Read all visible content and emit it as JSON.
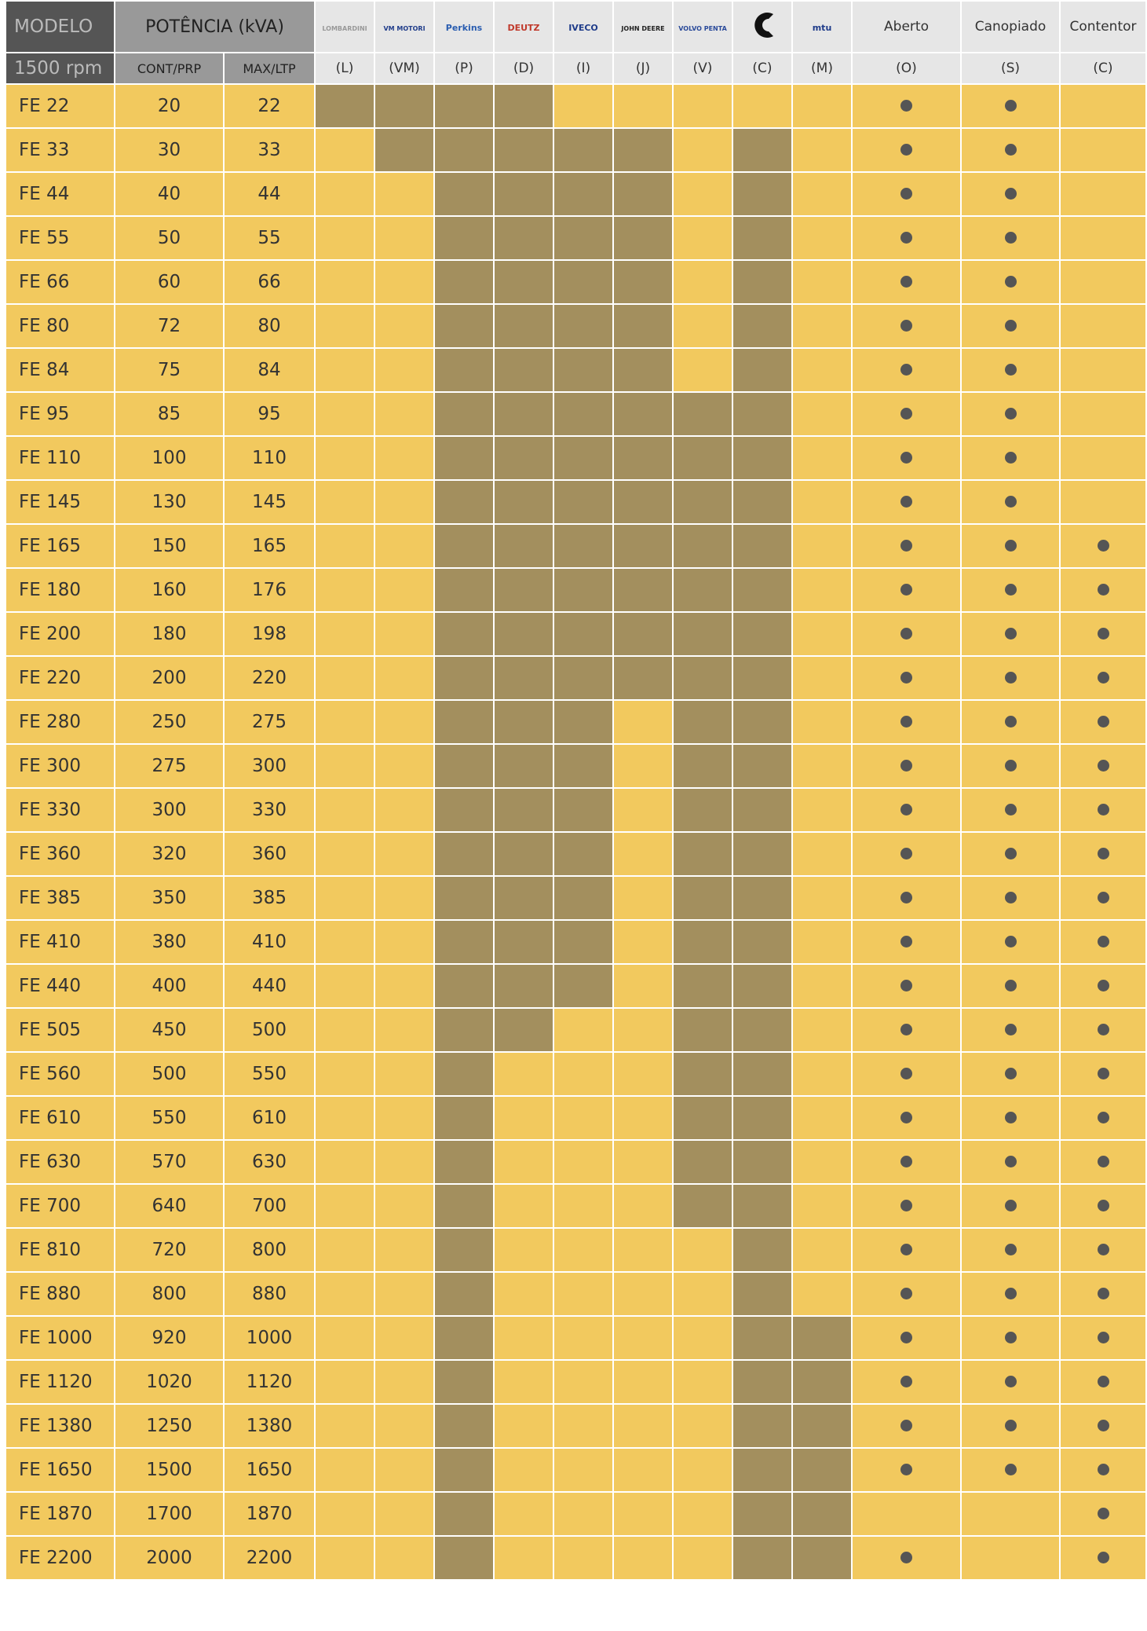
{
  "header": {
    "model": "MODELO",
    "rpm": "1500 rpm",
    "power": "POTÊNCIA (kVA)",
    "cont": "CONT/PRP",
    "max": "MAX/LTP",
    "engines": [
      {
        "logo": "LOMBARDINI",
        "code": "(L)"
      },
      {
        "logo": "VM MOTORI",
        "code": "(VM)"
      },
      {
        "logo": "Perkins",
        "code": "(P)"
      },
      {
        "logo": "DEUTZ",
        "code": "(D)"
      },
      {
        "logo": "IVECO",
        "code": "(I)"
      },
      {
        "logo": "JOHN DEERE",
        "code": "(J)"
      },
      {
        "logo": "VOLVO PENTA",
        "code": "(V)"
      },
      {
        "code": "(C)"
      },
      {
        "logo": "mtu",
        "code": "(M)"
      }
    ],
    "enclosures": [
      {
        "name": "Aberto",
        "code": "(O)"
      },
      {
        "name": "Canopiado",
        "code": "(S)"
      },
      {
        "name": "Contentor",
        "code": "(C)"
      }
    ]
  },
  "rows": [
    {
      "model": "FE 22",
      "cont": 20,
      "max": 22,
      "engines": [
        true,
        true,
        true,
        true,
        false,
        false,
        false,
        false,
        false
      ],
      "enclosures": [
        true,
        true,
        false
      ]
    },
    {
      "model": "FE 33",
      "cont": 30,
      "max": 33,
      "engines": [
        false,
        true,
        true,
        true,
        true,
        true,
        false,
        true,
        false
      ],
      "enclosures": [
        true,
        true,
        false
      ]
    },
    {
      "model": "FE 44",
      "cont": 40,
      "max": 44,
      "engines": [
        false,
        false,
        true,
        true,
        true,
        true,
        false,
        true,
        false
      ],
      "enclosures": [
        true,
        true,
        false
      ]
    },
    {
      "model": "FE 55",
      "cont": 50,
      "max": 55,
      "engines": [
        false,
        false,
        true,
        true,
        true,
        true,
        false,
        true,
        false
      ],
      "enclosures": [
        true,
        true,
        false
      ]
    },
    {
      "model": "FE 66",
      "cont": 60,
      "max": 66,
      "engines": [
        false,
        false,
        true,
        true,
        true,
        true,
        false,
        true,
        false
      ],
      "enclosures": [
        true,
        true,
        false
      ]
    },
    {
      "model": "FE 80",
      "cont": 72,
      "max": 80,
      "engines": [
        false,
        false,
        true,
        true,
        true,
        true,
        false,
        true,
        false
      ],
      "enclosures": [
        true,
        true,
        false
      ]
    },
    {
      "model": "FE 84",
      "cont": 75,
      "max": 84,
      "engines": [
        false,
        false,
        true,
        true,
        true,
        true,
        false,
        true,
        false
      ],
      "enclosures": [
        true,
        true,
        false
      ]
    },
    {
      "model": "FE 95",
      "cont": 85,
      "max": 95,
      "engines": [
        false,
        false,
        true,
        true,
        true,
        true,
        true,
        true,
        false
      ],
      "enclosures": [
        true,
        true,
        false
      ]
    },
    {
      "model": "FE 110",
      "cont": 100,
      "max": 110,
      "engines": [
        false,
        false,
        true,
        true,
        true,
        true,
        true,
        true,
        false
      ],
      "enclosures": [
        true,
        true,
        false
      ]
    },
    {
      "model": "FE 145",
      "cont": 130,
      "max": 145,
      "engines": [
        false,
        false,
        true,
        true,
        true,
        true,
        true,
        true,
        false
      ],
      "enclosures": [
        true,
        true,
        false
      ]
    },
    {
      "model": "FE 165",
      "cont": 150,
      "max": 165,
      "engines": [
        false,
        false,
        true,
        true,
        true,
        true,
        true,
        true,
        false
      ],
      "enclosures": [
        true,
        true,
        true
      ]
    },
    {
      "model": "FE 180",
      "cont": 160,
      "max": 176,
      "engines": [
        false,
        false,
        true,
        true,
        true,
        true,
        true,
        true,
        false
      ],
      "enclosures": [
        true,
        true,
        true
      ]
    },
    {
      "model": "FE 200",
      "cont": 180,
      "max": 198,
      "engines": [
        false,
        false,
        true,
        true,
        true,
        true,
        true,
        true,
        false
      ],
      "enclosures": [
        true,
        true,
        true
      ]
    },
    {
      "model": "FE 220",
      "cont": 200,
      "max": 220,
      "engines": [
        false,
        false,
        true,
        true,
        true,
        true,
        true,
        true,
        false
      ],
      "enclosures": [
        true,
        true,
        true
      ]
    },
    {
      "model": "FE 280",
      "cont": 250,
      "max": 275,
      "engines": [
        false,
        false,
        true,
        true,
        true,
        false,
        true,
        true,
        false
      ],
      "enclosures": [
        true,
        true,
        true
      ]
    },
    {
      "model": "FE 300",
      "cont": 275,
      "max": 300,
      "engines": [
        false,
        false,
        true,
        true,
        true,
        false,
        true,
        true,
        false
      ],
      "enclosures": [
        true,
        true,
        true
      ]
    },
    {
      "model": "FE 330",
      "cont": 300,
      "max": 330,
      "engines": [
        false,
        false,
        true,
        true,
        true,
        false,
        true,
        true,
        false
      ],
      "enclosures": [
        true,
        true,
        true
      ]
    },
    {
      "model": "FE 360",
      "cont": 320,
      "max": 360,
      "engines": [
        false,
        false,
        true,
        true,
        true,
        false,
        true,
        true,
        false
      ],
      "enclosures": [
        true,
        true,
        true
      ]
    },
    {
      "model": "FE 385",
      "cont": 350,
      "max": 385,
      "engines": [
        false,
        false,
        true,
        true,
        true,
        false,
        true,
        true,
        false
      ],
      "enclosures": [
        true,
        true,
        true
      ]
    },
    {
      "model": "FE 410",
      "cont": 380,
      "max": 410,
      "engines": [
        false,
        false,
        true,
        true,
        true,
        false,
        true,
        true,
        false
      ],
      "enclosures": [
        true,
        true,
        true
      ]
    },
    {
      "model": "FE 440",
      "cont": 400,
      "max": 440,
      "engines": [
        false,
        false,
        true,
        true,
        true,
        false,
        true,
        true,
        false
      ],
      "enclosures": [
        true,
        true,
        true
      ]
    },
    {
      "model": "FE 505",
      "cont": 450,
      "max": 500,
      "engines": [
        false,
        false,
        true,
        true,
        false,
        false,
        true,
        true,
        false
      ],
      "enclosures": [
        true,
        true,
        true
      ]
    },
    {
      "model": "FE 560",
      "cont": 500,
      "max": 550,
      "engines": [
        false,
        false,
        true,
        false,
        false,
        false,
        true,
        true,
        false
      ],
      "enclosures": [
        true,
        true,
        true
      ]
    },
    {
      "model": "FE 610",
      "cont": 550,
      "max": 610,
      "engines": [
        false,
        false,
        true,
        false,
        false,
        false,
        true,
        true,
        false
      ],
      "enclosures": [
        true,
        true,
        true
      ]
    },
    {
      "model": "FE 630",
      "cont": 570,
      "max": 630,
      "engines": [
        false,
        false,
        true,
        false,
        false,
        false,
        true,
        true,
        false
      ],
      "enclosures": [
        true,
        true,
        true
      ]
    },
    {
      "model": "FE 700",
      "cont": 640,
      "max": 700,
      "engines": [
        false,
        false,
        true,
        false,
        false,
        false,
        true,
        true,
        false
      ],
      "enclosures": [
        true,
        true,
        true
      ]
    },
    {
      "model": "FE 810",
      "cont": 720,
      "max": 800,
      "engines": [
        false,
        false,
        true,
        false,
        false,
        false,
        false,
        true,
        false
      ],
      "enclosures": [
        true,
        true,
        true
      ]
    },
    {
      "model": "FE 880",
      "cont": 800,
      "max": 880,
      "engines": [
        false,
        false,
        true,
        false,
        false,
        false,
        false,
        true,
        false
      ],
      "enclosures": [
        true,
        true,
        true
      ]
    },
    {
      "model": "FE 1000",
      "cont": 920,
      "max": 1000,
      "engines": [
        false,
        false,
        true,
        false,
        false,
        false,
        false,
        true,
        true
      ],
      "enclosures": [
        true,
        true,
        true
      ]
    },
    {
      "model": "FE 1120",
      "cont": 1020,
      "max": 1120,
      "engines": [
        false,
        false,
        true,
        false,
        false,
        false,
        false,
        true,
        true
      ],
      "enclosures": [
        true,
        true,
        true
      ]
    },
    {
      "model": "FE 1380",
      "cont": 1250,
      "max": 1380,
      "engines": [
        false,
        false,
        true,
        false,
        false,
        false,
        false,
        true,
        true
      ],
      "enclosures": [
        true,
        true,
        true
      ]
    },
    {
      "model": "FE 1650",
      "cont": 1500,
      "max": 1650,
      "engines": [
        false,
        false,
        true,
        false,
        false,
        false,
        false,
        true,
        true
      ],
      "enclosures": [
        true,
        true,
        true
      ]
    },
    {
      "model": "FE 1870",
      "cont": 1700,
      "max": 1870,
      "engines": [
        false,
        false,
        true,
        false,
        false,
        false,
        false,
        true,
        true
      ],
      "enclosures": [
        false,
        false,
        true
      ]
    },
    {
      "model": "FE 2200",
      "cont": 2000,
      "max": 2200,
      "engines": [
        false,
        false,
        true,
        false,
        false,
        false,
        false,
        true,
        true
      ],
      "enclosures": [
        true,
        false,
        true
      ]
    }
  ]
}
